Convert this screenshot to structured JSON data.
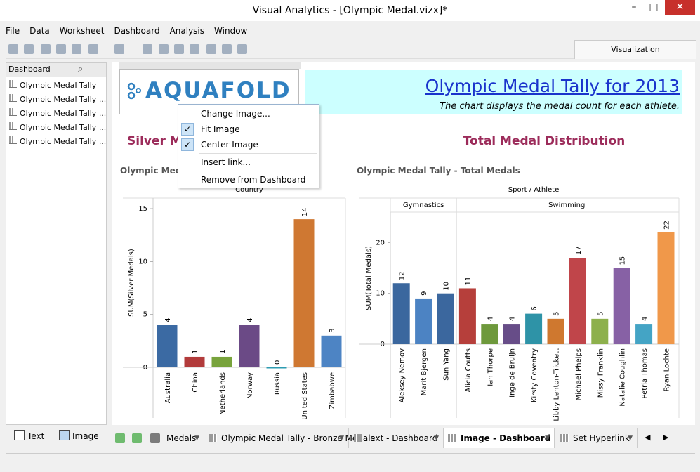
{
  "window": {
    "title": "Visual Analytics - [Olympic Medal.vizx]*"
  },
  "menu": [
    "File",
    "Data",
    "Worksheet",
    "Dashboard",
    "Analysis",
    "Window"
  ],
  "toolbar": {
    "tab": "Visualization"
  },
  "sidebar": {
    "header": "Dashboard",
    "items": [
      "Olympic Medal Tally",
      "Olympic Medal Tally ...",
      "Olympic Medal Tally ...",
      "Olympic Medal Tally ...",
      "Olympic Medal Tally ..."
    ],
    "buttons": [
      "Text",
      "Image"
    ]
  },
  "dashboard": {
    "logo": "AQUAFOLD",
    "title": "Olympic Medal Tally for 2013",
    "subtitle": "The chart displays the medal count for each athlete.",
    "charts": [
      {
        "type": "bar",
        "heading": "Silver Medal Distribution",
        "title": "Olympic Medal Tally - Silver Medals",
        "x_label": "Country",
        "y_label": "SUM(Silver Medals)",
        "categories": [
          "Australia",
          "China",
          "Netherlands",
          "Norway",
          "Russia",
          "United States",
          "Zimbabwe"
        ],
        "values": [
          4,
          1,
          1,
          4,
          0,
          14,
          3
        ],
        "colors": [
          "#3b6aa3",
          "#b23b3b",
          "#78a33c",
          "#6b4a86",
          "#2e9cb2",
          "#cf7832",
          "#4d84c4"
        ],
        "ylim": [
          0,
          16
        ],
        "yticks": [
          0,
          5,
          10,
          15
        ]
      },
      {
        "type": "bar",
        "heading": "Total Medal Distribution",
        "title": "Olympic Medal Tally - Total Medals",
        "x_label": "Sport / Athlete",
        "y_label": "SUM(Total Medals)",
        "groups": [
          {
            "name": "Gymnastics",
            "categories": [
              "Aleksey Nemov",
              "Marit Bjergen",
              "Sun Yang"
            ]
          },
          {
            "name": "Swimming",
            "categories": [
              "Alicia Coutts",
              "Ian Thorpe",
              "Inge de Bruijn",
              "Kirsty Coventry",
              "Libby Lenton-Trickett",
              "Michael Phelps",
              "Missy Franklin",
              "Natalie Coughlin",
              "Petria Thomas",
              "Ryan Lochte"
            ]
          }
        ],
        "values": [
          12,
          9,
          10,
          11,
          4,
          4,
          6,
          5,
          17,
          5,
          15,
          4,
          22
        ],
        "colors": [
          "#3b679e",
          "#4c83c3",
          "#3b679e",
          "#b63f3b",
          "#6e993c",
          "#674d88",
          "#2e93a7",
          "#cf782f",
          "#c0454a",
          "#8db04c",
          "#8761a5",
          "#44a4c5",
          "#f0984a"
        ],
        "ylim": [
          0,
          26
        ],
        "yticks": [
          0,
          10,
          20
        ]
      }
    ]
  },
  "context_menu": {
    "items": [
      {
        "label": "Change Image...",
        "checked": false
      },
      {
        "label": "Fit Image",
        "checked": true
      },
      {
        "label": "Center Image",
        "checked": true
      },
      {
        "label": "Insert link...",
        "checked": false
      },
      {
        "label": "Remove from Dashboard",
        "checked": false
      }
    ]
  },
  "tabs": [
    "Medals",
    "Olympic Medal Tally - Bronze Medals",
    "Text - Dashboard",
    "Image - Dashboard",
    "Set Hyperlink"
  ],
  "active_tab": 3
}
